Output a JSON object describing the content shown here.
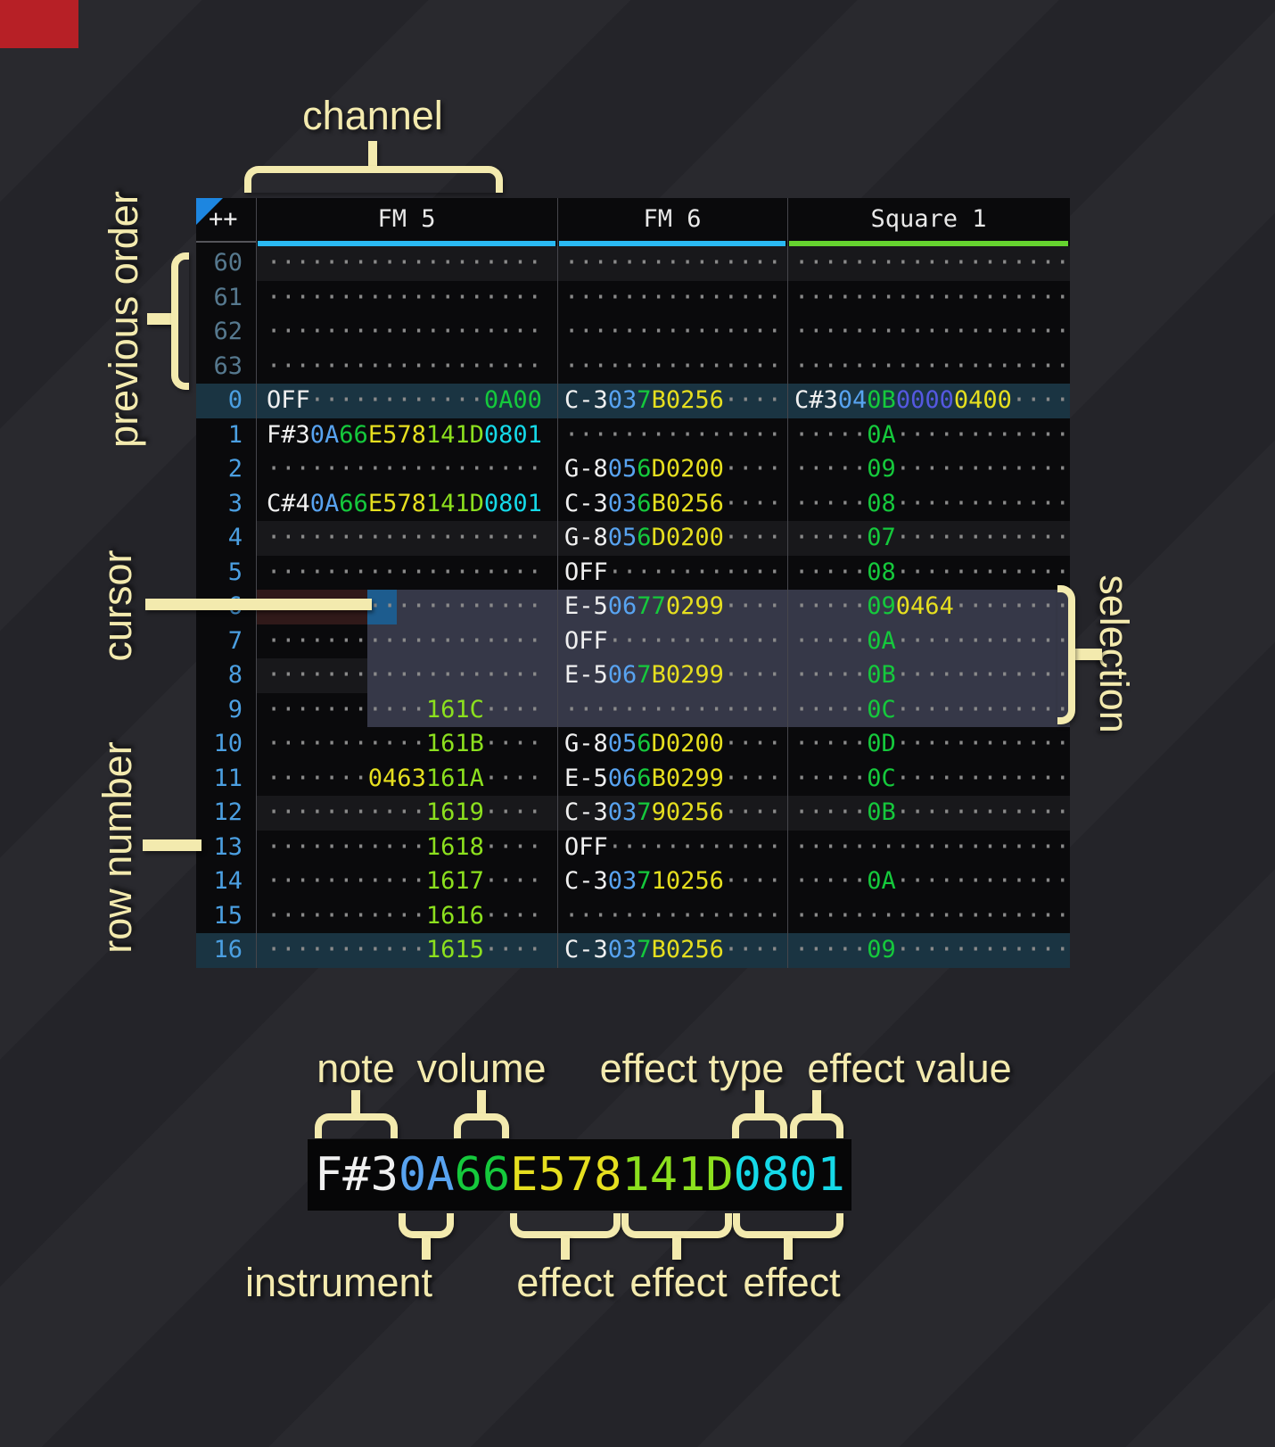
{
  "annotations": {
    "channel": "channel",
    "previous_order": "previous order",
    "cursor": "cursor",
    "row_number": "row number",
    "selection": "selection",
    "note": "note",
    "volume": "volume",
    "effect_type": "effect type",
    "effect_value": "effect value",
    "instrument": "instrument",
    "effect": "effect"
  },
  "colors": {
    "w": "#f0f0f0",
    "i": "#58a3f0",
    "v": "#15c93c",
    "y": "#e6df1f",
    "g": "#8ce01e",
    "c": "#15d9e8",
    "p": "#5558e0",
    "d": "#8a8a8a",
    "rownum_prev": "#56798f",
    "rownum_cur": "#4b9fe1",
    "underline_fm": "#2ab9f2",
    "underline_square": "#65d32f"
  },
  "tracker": {
    "corner": "++",
    "channels": [
      {
        "name": "FM 5",
        "bar": "underline_fm"
      },
      {
        "name": "FM 6",
        "bar": "underline_fm"
      },
      {
        "name": "Square 1",
        "bar": "underline_square"
      }
    ],
    "rows": [
      {
        "num": "60",
        "prev": true,
        "hl": "minor",
        "cells": [
          [
            [
              "d",
              "···················"
            ]
          ],
          [
            [
              "d",
              "···············"
            ]
          ],
          [
            [
              "d",
              "···················"
            ]
          ]
        ]
      },
      {
        "num": "61",
        "prev": true,
        "hl": null,
        "cells": [
          [
            [
              "d",
              "···················"
            ]
          ],
          [
            [
              "d",
              "···············"
            ]
          ],
          [
            [
              "d",
              "···················"
            ]
          ]
        ]
      },
      {
        "num": "62",
        "prev": true,
        "hl": null,
        "cells": [
          [
            [
              "d",
              "···················"
            ]
          ],
          [
            [
              "d",
              "···············"
            ]
          ],
          [
            [
              "d",
              "···················"
            ]
          ]
        ]
      },
      {
        "num": "63",
        "prev": true,
        "hl": null,
        "cells": [
          [
            [
              "d",
              "···················"
            ]
          ],
          [
            [
              "d",
              "···············"
            ]
          ],
          [
            [
              "d",
              "···················"
            ]
          ]
        ]
      },
      {
        "num": "0",
        "prev": false,
        "hl": "major",
        "cells": [
          [
            [
              "w",
              "OFF"
            ],
            [
              "d",
              "············"
            ],
            [
              "v",
              "0A00"
            ]
          ],
          [
            [
              "w",
              "C-3"
            ],
            [
              "i",
              "03"
            ],
            [
              "v",
              "7"
            ],
            [
              "y",
              "B0256"
            ],
            [
              "d",
              "····"
            ]
          ],
          [
            [
              "w",
              "C#3"
            ],
            [
              "i",
              "04"
            ],
            [
              "v",
              "0B"
            ],
            [
              "p",
              "0000"
            ],
            [
              "y",
              "0400"
            ],
            [
              "d",
              "····"
            ]
          ]
        ]
      },
      {
        "num": "1",
        "prev": false,
        "hl": null,
        "cells": [
          [
            [
              "w",
              "F#3"
            ],
            [
              "i",
              "0A"
            ],
            [
              "v",
              "66"
            ],
            [
              "y",
              "E578"
            ],
            [
              "g",
              "141D"
            ],
            [
              "c",
              "0801"
            ]
          ],
          [
            [
              "d",
              "···············"
            ]
          ],
          [
            [
              "d",
              "·····"
            ],
            [
              "v",
              "0A"
            ],
            [
              "d",
              "············"
            ]
          ]
        ]
      },
      {
        "num": "2",
        "prev": false,
        "hl": null,
        "cells": [
          [
            [
              "d",
              "···················"
            ]
          ],
          [
            [
              "w",
              "G-8"
            ],
            [
              "i",
              "05"
            ],
            [
              "v",
              "6"
            ],
            [
              "y",
              "D0200"
            ],
            [
              "d",
              "····"
            ]
          ],
          [
            [
              "d",
              "·····"
            ],
            [
              "v",
              "09"
            ],
            [
              "d",
              "············"
            ]
          ]
        ]
      },
      {
        "num": "3",
        "prev": false,
        "hl": null,
        "cells": [
          [
            [
              "w",
              "C#4"
            ],
            [
              "i",
              "0A"
            ],
            [
              "v",
              "66"
            ],
            [
              "y",
              "E578"
            ],
            [
              "g",
              "141D"
            ],
            [
              "c",
              "0801"
            ]
          ],
          [
            [
              "w",
              "C-3"
            ],
            [
              "i",
              "03"
            ],
            [
              "v",
              "6"
            ],
            [
              "y",
              "B0256"
            ],
            [
              "d",
              "····"
            ]
          ],
          [
            [
              "d",
              "·····"
            ],
            [
              "v",
              "08"
            ],
            [
              "d",
              "············"
            ]
          ]
        ]
      },
      {
        "num": "4",
        "prev": false,
        "hl": "minor",
        "cells": [
          [
            [
              "d",
              "···················"
            ]
          ],
          [
            [
              "w",
              "G-8"
            ],
            [
              "i",
              "05"
            ],
            [
              "v",
              "6"
            ],
            [
              "y",
              "D0200"
            ],
            [
              "d",
              "····"
            ]
          ],
          [
            [
              "d",
              "·····"
            ],
            [
              "v",
              "07"
            ],
            [
              "d",
              "············"
            ]
          ]
        ]
      },
      {
        "num": "5",
        "prev": false,
        "hl": null,
        "cells": [
          [
            [
              "d",
              "···················"
            ]
          ],
          [
            [
              "w",
              "OFF"
            ],
            [
              "d",
              "············"
            ]
          ],
          [
            [
              "d",
              "·····"
            ],
            [
              "v",
              "08"
            ],
            [
              "d",
              "············"
            ]
          ]
        ]
      },
      {
        "num": "6",
        "prev": false,
        "hl": null,
        "sel": true,
        "cursorRow": true,
        "cells": [
          [
            [
              "d",
              "···················"
            ]
          ],
          [
            [
              "w",
              "E-5"
            ],
            [
              "i",
              "06"
            ],
            [
              "v",
              "77"
            ],
            [
              "y",
              "0299"
            ],
            [
              "d",
              "····"
            ]
          ],
          [
            [
              "d",
              "·····"
            ],
            [
              "v",
              "09"
            ],
            [
              "y",
              "0464"
            ],
            [
              "d",
              "········"
            ]
          ]
        ]
      },
      {
        "num": "7",
        "prev": false,
        "hl": null,
        "sel": true,
        "cells": [
          [
            [
              "d",
              "···················"
            ]
          ],
          [
            [
              "w",
              "OFF"
            ],
            [
              "d",
              "············"
            ]
          ],
          [
            [
              "d",
              "·····"
            ],
            [
              "v",
              "0A"
            ],
            [
              "d",
              "············"
            ]
          ]
        ]
      },
      {
        "num": "8",
        "prev": false,
        "hl": "minor",
        "sel": true,
        "cells": [
          [
            [
              "d",
              "···················"
            ]
          ],
          [
            [
              "w",
              "E-5"
            ],
            [
              "i",
              "06"
            ],
            [
              "v",
              "7"
            ],
            [
              "y",
              "B0299"
            ],
            [
              "d",
              "····"
            ]
          ],
          [
            [
              "d",
              "·····"
            ],
            [
              "v",
              "0B"
            ],
            [
              "d",
              "············"
            ]
          ]
        ]
      },
      {
        "num": "9",
        "prev": false,
        "hl": null,
        "sel": true,
        "cells": [
          [
            [
              "d",
              "···········"
            ],
            [
              "g",
              "161C"
            ],
            [
              "d",
              "····"
            ]
          ],
          [
            [
              "d",
              "···············"
            ]
          ],
          [
            [
              "d",
              "·····"
            ],
            [
              "v",
              "0C"
            ],
            [
              "d",
              "············"
            ]
          ]
        ]
      },
      {
        "num": "10",
        "prev": false,
        "hl": null,
        "cells": [
          [
            [
              "d",
              "···········"
            ],
            [
              "g",
              "161B"
            ],
            [
              "d",
              "····"
            ]
          ],
          [
            [
              "w",
              "G-8"
            ],
            [
              "i",
              "05"
            ],
            [
              "v",
              "6"
            ],
            [
              "y",
              "D0200"
            ],
            [
              "d",
              "····"
            ]
          ],
          [
            [
              "d",
              "·····"
            ],
            [
              "v",
              "0D"
            ],
            [
              "d",
              "············"
            ]
          ]
        ]
      },
      {
        "num": "11",
        "prev": false,
        "hl": null,
        "cells": [
          [
            [
              "d",
              "·······"
            ],
            [
              "y",
              "0463"
            ],
            [
              "g",
              "161A"
            ],
            [
              "d",
              "····"
            ]
          ],
          [
            [
              "w",
              "E-5"
            ],
            [
              "i",
              "06"
            ],
            [
              "v",
              "6"
            ],
            [
              "y",
              "B0299"
            ],
            [
              "d",
              "····"
            ]
          ],
          [
            [
              "d",
              "·····"
            ],
            [
              "v",
              "0C"
            ],
            [
              "d",
              "············"
            ]
          ]
        ]
      },
      {
        "num": "12",
        "prev": false,
        "hl": "minor",
        "cells": [
          [
            [
              "d",
              "···········"
            ],
            [
              "g",
              "1619"
            ],
            [
              "d",
              "····"
            ]
          ],
          [
            [
              "w",
              "C-3"
            ],
            [
              "i",
              "03"
            ],
            [
              "v",
              "7"
            ],
            [
              "y",
              "90256"
            ],
            [
              "d",
              "····"
            ]
          ],
          [
            [
              "d",
              "·····"
            ],
            [
              "v",
              "0B"
            ],
            [
              "d",
              "············"
            ]
          ]
        ]
      },
      {
        "num": "13",
        "prev": false,
        "hl": null,
        "cells": [
          [
            [
              "d",
              "···········"
            ],
            [
              "g",
              "1618"
            ],
            [
              "d",
              "····"
            ]
          ],
          [
            [
              "w",
              "OFF"
            ],
            [
              "d",
              "············"
            ]
          ],
          [
            [
              "d",
              "···················"
            ]
          ]
        ]
      },
      {
        "num": "14",
        "prev": false,
        "hl": null,
        "cells": [
          [
            [
              "d",
              "···········"
            ],
            [
              "g",
              "1617"
            ],
            [
              "d",
              "····"
            ]
          ],
          [
            [
              "w",
              "C-3"
            ],
            [
              "i",
              "03"
            ],
            [
              "v",
              "7"
            ],
            [
              "y",
              "10256"
            ],
            [
              "d",
              "····"
            ]
          ],
          [
            [
              "d",
              "·····"
            ],
            [
              "v",
              "0A"
            ],
            [
              "d",
              "············"
            ]
          ]
        ]
      },
      {
        "num": "15",
        "prev": false,
        "hl": null,
        "cells": [
          [
            [
              "d",
              "···········"
            ],
            [
              "g",
              "1616"
            ],
            [
              "d",
              "····"
            ]
          ],
          [
            [
              "d",
              "···············"
            ]
          ],
          [
            [
              "d",
              "···················"
            ]
          ]
        ]
      },
      {
        "num": "16",
        "prev": false,
        "hl": "major",
        "cells": [
          [
            [
              "d",
              "···········"
            ],
            [
              "g",
              "1615"
            ],
            [
              "d",
              "····"
            ]
          ],
          [
            [
              "w",
              "C-3"
            ],
            [
              "i",
              "03"
            ],
            [
              "v",
              "7"
            ],
            [
              "y",
              "B0256"
            ],
            [
              "d",
              "····"
            ]
          ],
          [
            [
              "d",
              "·····"
            ],
            [
              "v",
              "09"
            ],
            [
              "d",
              "············"
            ]
          ]
        ]
      }
    ]
  },
  "legend": {
    "segments": [
      [
        "w",
        "F#3"
      ],
      [
        "i",
        "0A"
      ],
      [
        "v",
        "66"
      ],
      [
        "y",
        "E578"
      ],
      [
        "g",
        "141D"
      ],
      [
        "c",
        "0801"
      ]
    ]
  }
}
